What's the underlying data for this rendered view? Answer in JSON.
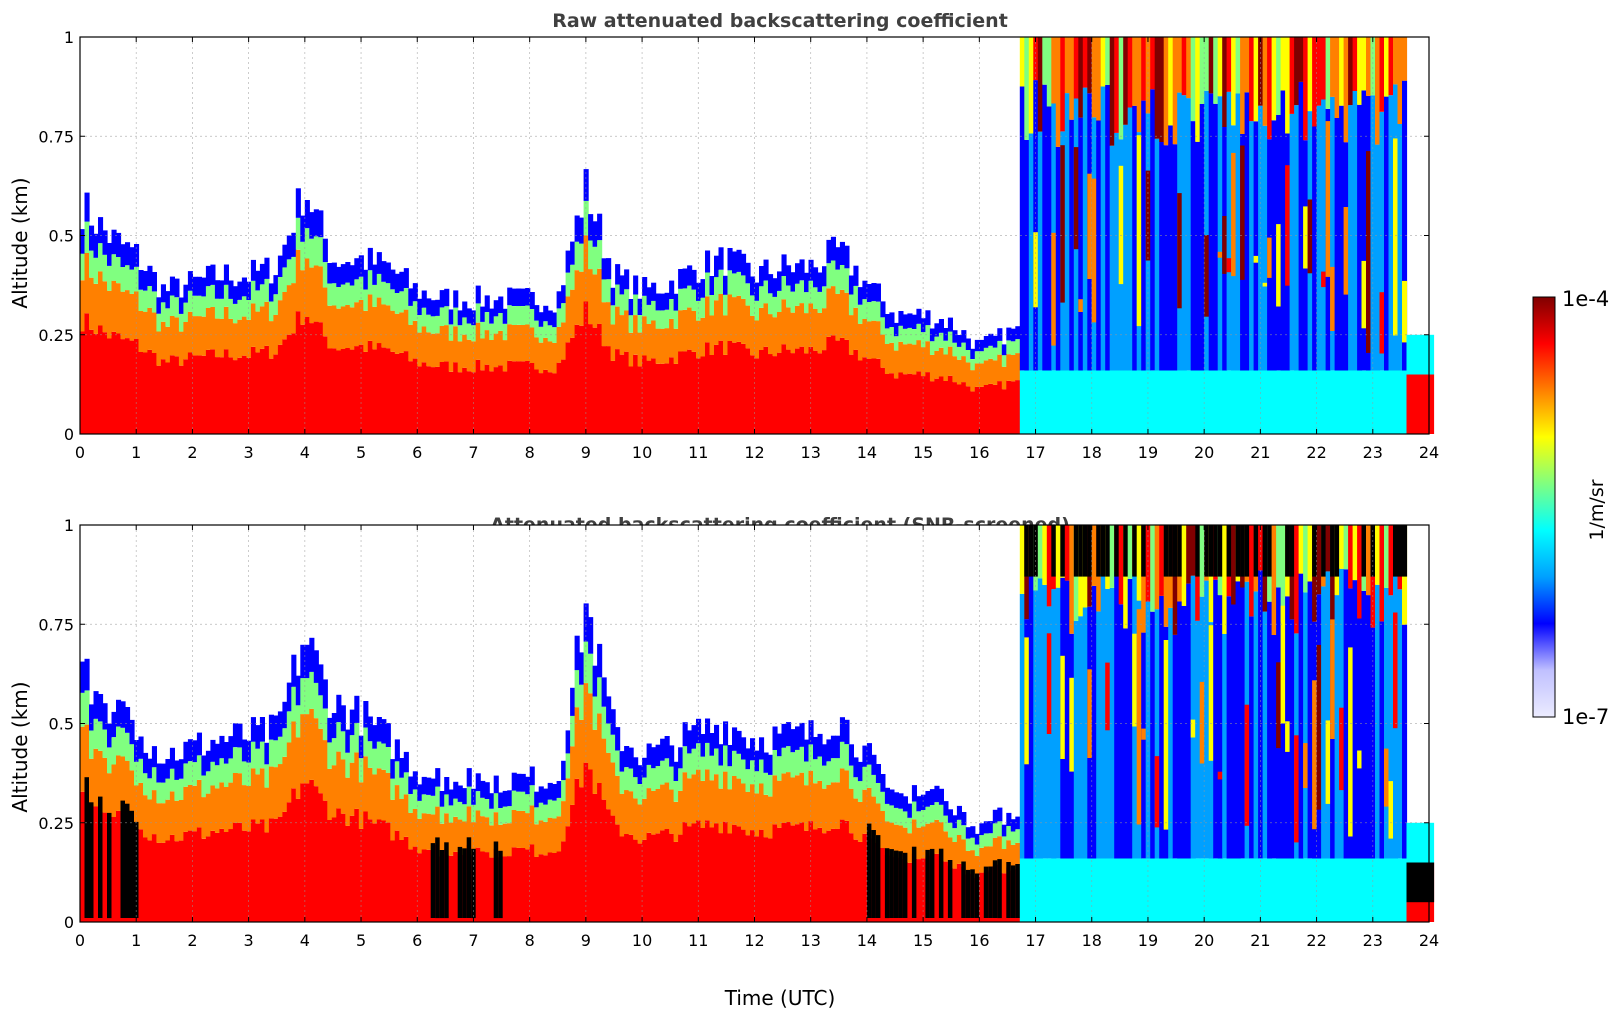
{
  "chart_data": [
    {
      "type": "heatmap",
      "title": "Raw attenuated backscattering coefficient",
      "xlabel": "",
      "ylabel": "Altitude (km)",
      "xlim": [
        0,
        24
      ],
      "ylim": [
        0,
        1
      ],
      "x_ticks": [
        "0",
        "1",
        "2",
        "3",
        "4",
        "5",
        "6",
        "7",
        "8",
        "9",
        "10",
        "11",
        "12",
        "13",
        "14",
        "15",
        "16",
        "17",
        "18",
        "19",
        "20",
        "21",
        "22",
        "23",
        "24"
      ],
      "y_ticks": [
        "0",
        "0.25",
        "0.5",
        "0.75",
        "1"
      ],
      "grid": true,
      "screened": false,
      "layer_top_km": [
        [
          0,
          0.58
        ],
        [
          0.5,
          0.5
        ],
        [
          1,
          0.45
        ],
        [
          1.5,
          0.36
        ],
        [
          2,
          0.38
        ],
        [
          2.5,
          0.4
        ],
        [
          3,
          0.4
        ],
        [
          3.5,
          0.42
        ],
        [
          4,
          0.62
        ],
        [
          4.5,
          0.44
        ],
        [
          5,
          0.44
        ],
        [
          5.5,
          0.42
        ],
        [
          6,
          0.36
        ],
        [
          6.5,
          0.34
        ],
        [
          7,
          0.34
        ],
        [
          7.5,
          0.34
        ],
        [
          8,
          0.34
        ],
        [
          8.5,
          0.34
        ],
        [
          9,
          0.62
        ],
        [
          9.5,
          0.4
        ],
        [
          10,
          0.36
        ],
        [
          10.5,
          0.38
        ],
        [
          11,
          0.42
        ],
        [
          11.5,
          0.44
        ],
        [
          12,
          0.4
        ],
        [
          12.5,
          0.42
        ],
        [
          13,
          0.42
        ],
        [
          13.5,
          0.46
        ],
        [
          14,
          0.38
        ],
        [
          14.5,
          0.3
        ],
        [
          15,
          0.3
        ],
        [
          15.5,
          0.28
        ],
        [
          16,
          0.22
        ],
        [
          16.6,
          0.26
        ]
      ],
      "cloud_period_utc": [
        16.7,
        23.6
      ],
      "cloud_base_km": 0.85,
      "trailing_layer_top_km": 0.25
    },
    {
      "type": "heatmap",
      "title": "Attenuated backscattering coefficient (SNR-screened)",
      "xlabel": "Time (UTC)",
      "ylabel": "Altitude (km)",
      "xlim": [
        0,
        24
      ],
      "ylim": [
        0,
        1
      ],
      "x_ticks": [
        "0",
        "1",
        "2",
        "3",
        "4",
        "5",
        "6",
        "7",
        "8",
        "9",
        "10",
        "11",
        "12",
        "13",
        "14",
        "15",
        "16",
        "17",
        "18",
        "19",
        "20",
        "21",
        "22",
        "23",
        "24"
      ],
      "y_ticks": [
        "0",
        "0.25",
        "0.5",
        "0.75",
        "1"
      ],
      "grid": true,
      "screened": true,
      "layer_top_km": [
        [
          0,
          0.62
        ],
        [
          0.5,
          0.55
        ],
        [
          1,
          0.48
        ],
        [
          1.5,
          0.42
        ],
        [
          2,
          0.44
        ],
        [
          2.5,
          0.46
        ],
        [
          3,
          0.47
        ],
        [
          3.5,
          0.48
        ],
        [
          4,
          0.72
        ],
        [
          4.5,
          0.55
        ],
        [
          5,
          0.52
        ],
        [
          5.5,
          0.46
        ],
        [
          6,
          0.38
        ],
        [
          6.5,
          0.36
        ],
        [
          7,
          0.36
        ],
        [
          7.5,
          0.36
        ],
        [
          8,
          0.36
        ],
        [
          8.5,
          0.36
        ],
        [
          9,
          0.8
        ],
        [
          9.5,
          0.48
        ],
        [
          10,
          0.42
        ],
        [
          10.5,
          0.44
        ],
        [
          11,
          0.48
        ],
        [
          11.5,
          0.5
        ],
        [
          12,
          0.46
        ],
        [
          12.5,
          0.47
        ],
        [
          13,
          0.47
        ],
        [
          13.5,
          0.52
        ],
        [
          14,
          0.42
        ],
        [
          14.5,
          0.32
        ],
        [
          15,
          0.34
        ],
        [
          15.5,
          0.3
        ],
        [
          16,
          0.24
        ],
        [
          16.6,
          0.28
        ]
      ],
      "cloud_period_utc": [
        16.7,
        23.6
      ],
      "cloud_base_km": 0.85,
      "trailing_layer_top_km": 0.25
    }
  ],
  "colorbar": {
    "label": "1/m/sr",
    "max_label": "1e-4",
    "min_label": "1e-7",
    "colors": [
      "#ececff",
      "#c0c0ff",
      "#0000ff",
      "#00a0ff",
      "#00ffff",
      "#80ff80",
      "#ffff00",
      "#ff8000",
      "#ff0000",
      "#800000"
    ]
  }
}
